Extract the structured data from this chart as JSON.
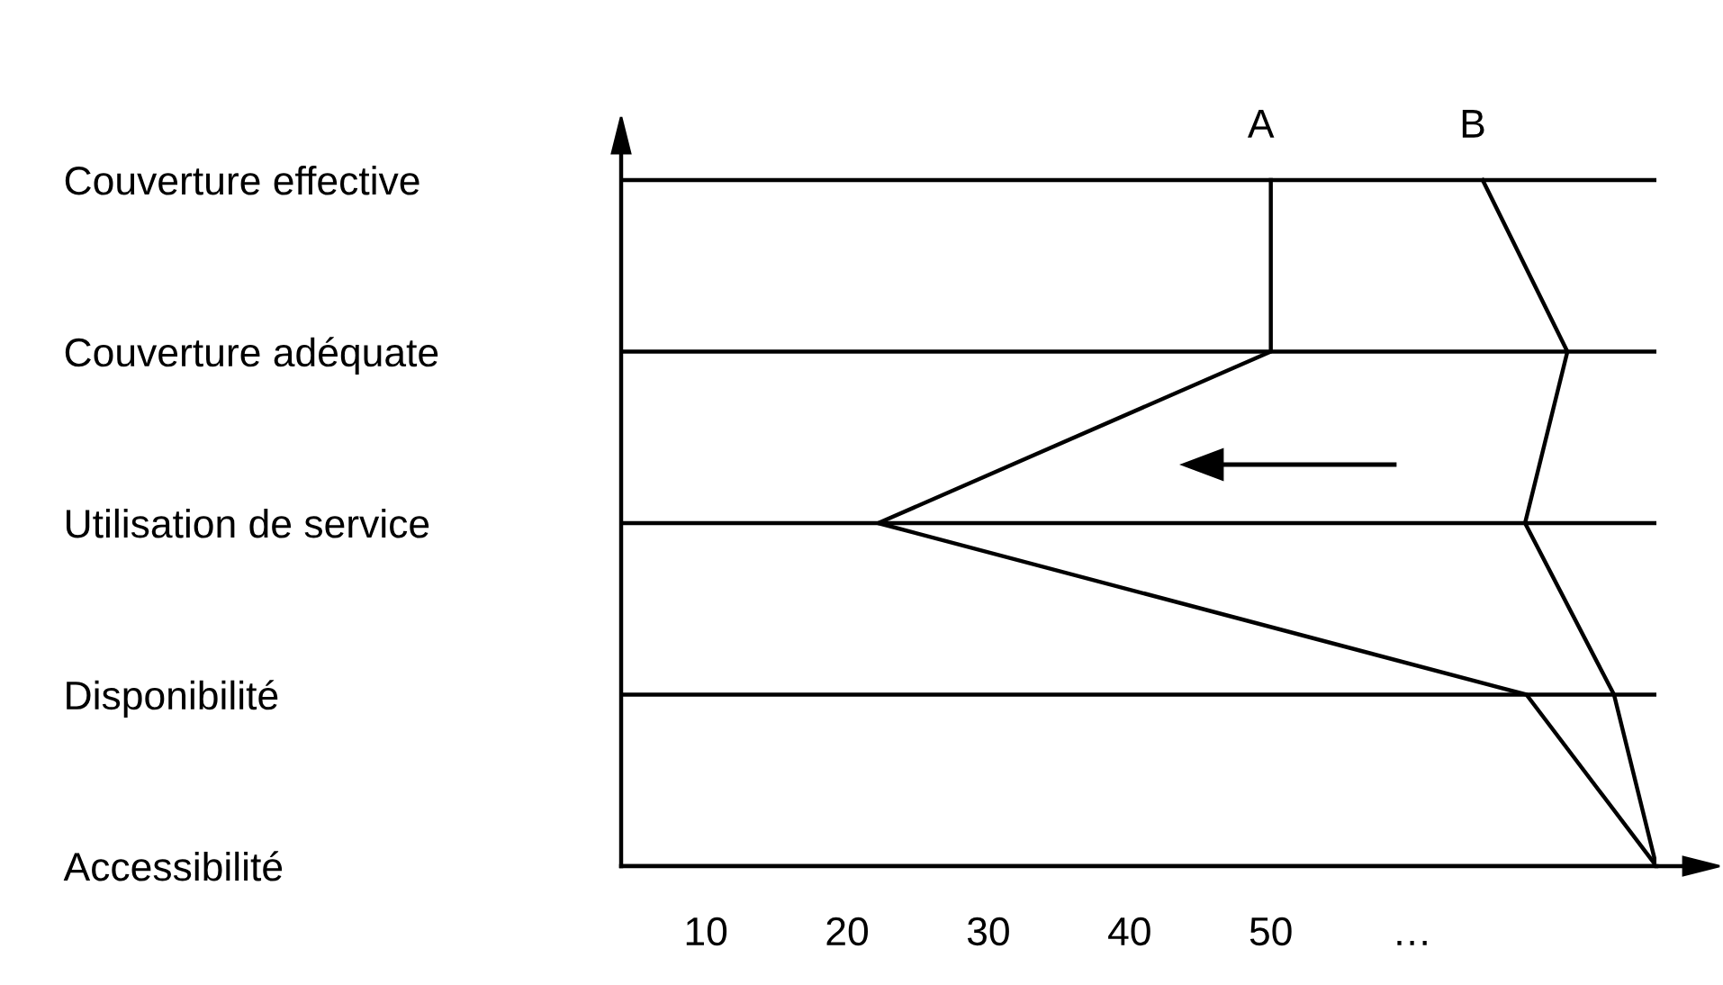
{
  "chart_data": {
    "type": "line",
    "orientation": "horizontal",
    "categories": [
      "Couverture effective",
      "Couverture adéquate",
      "Utilisation de service",
      "Disponibilité",
      "Accessibilité"
    ],
    "series": [
      {
        "name": "A",
        "color": "#000000",
        "values": [
          50,
          50,
          22.2,
          68.1,
          77.3
        ]
      },
      {
        "name": "B",
        "color": "#000000",
        "values": [
          65,
          71,
          68,
          74.3,
          77.3
        ]
      }
    ],
    "xlim": [
      4,
      77.3
    ],
    "xticks": [
      10,
      20,
      30,
      40,
      50,
      {
        "value": 60,
        "label": "…"
      }
    ],
    "grid": "y",
    "marker": "none",
    "line_style": "solid",
    "legend": false
  }
}
